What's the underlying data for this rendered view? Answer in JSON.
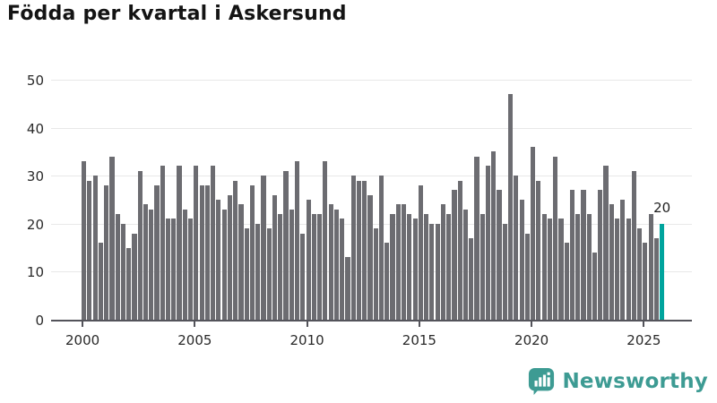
{
  "title": "Födda per kvartal i Askersund",
  "chart_data": {
    "type": "bar",
    "title": "Födda per kvartal i Askersund",
    "x_start_year": 2000,
    "frequency": "quarterly",
    "values": [
      33,
      29,
      30,
      16,
      28,
      34,
      22,
      20,
      15,
      18,
      31,
      24,
      23,
      28,
      32,
      21,
      21,
      32,
      23,
      21,
      32,
      28,
      28,
      32,
      25,
      23,
      26,
      29,
      24,
      19,
      28,
      20,
      30,
      19,
      26,
      22,
      31,
      23,
      33,
      18,
      25,
      22,
      22,
      33,
      24,
      23,
      21,
      13,
      30,
      29,
      29,
      26,
      19,
      30,
      16,
      22,
      24,
      24,
      22,
      21,
      28,
      22,
      20,
      20,
      24,
      22,
      27,
      29,
      23,
      17,
      34,
      22,
      32,
      35,
      27,
      20,
      47,
      30,
      25,
      18,
      36,
      29,
      22,
      21,
      34,
      21,
      16,
      27,
      22,
      27,
      22,
      14,
      27,
      32,
      24,
      21,
      25,
      21,
      31,
      19,
      16,
      22,
      17,
      20
    ],
    "highlight": {
      "index": 103,
      "label": "20",
      "quarter": "2025 Q4",
      "value": 20
    },
    "xticks": [
      "2000",
      "2005",
      "2010",
      "2015",
      "2020",
      "2025"
    ],
    "yticks": [
      0,
      10,
      20,
      30,
      40,
      50
    ],
    "ylim": [
      0,
      50
    ],
    "xlabel": "",
    "ylabel": "",
    "grid": true,
    "legend": "none",
    "bar_color": "#6c6c71",
    "highlight_color": "#00a49d"
  },
  "footer": {
    "brand": "Newsworthy",
    "brand_color": "#3d9b93",
    "logo_icon": "bar-chart-speech-bubble"
  }
}
